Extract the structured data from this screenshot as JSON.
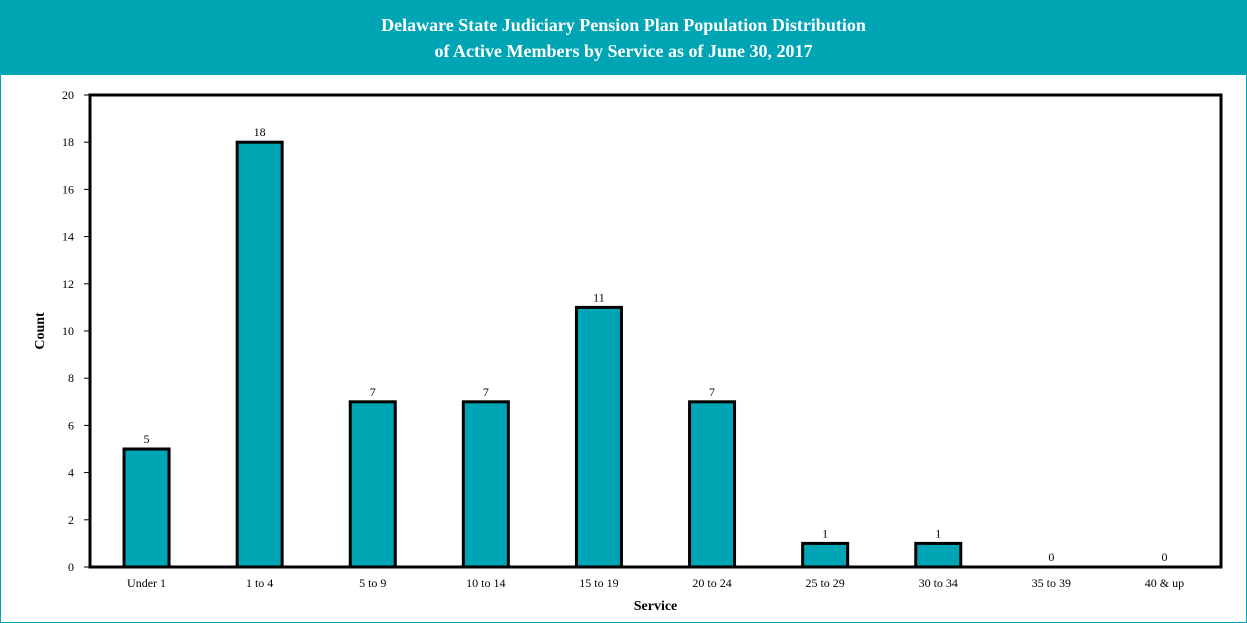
{
  "chart_data": {
    "type": "bar",
    "title": "Delaware State Judiciary Pension Plan Population Distribution",
    "subtitle": "of Active Members by Service as of June 30, 2017",
    "xlabel": "Service",
    "ylabel": "Count",
    "categories": [
      "Under 1",
      "1 to 4",
      "5 to 9",
      "10 to 14",
      "15 to 19",
      "20 to 24",
      "25 to 29",
      "30 to 34",
      "35 to 39",
      "40 & up"
    ],
    "values": [
      5,
      18,
      7,
      7,
      11,
      7,
      1,
      1,
      0,
      0
    ],
    "ylim": [
      0,
      20
    ],
    "yticks": [
      0,
      2,
      4,
      6,
      8,
      10,
      12,
      14,
      16,
      18,
      20
    ],
    "grid": false,
    "legend": "none",
    "bar_color": "#00a5b5",
    "bar_edge_color": "#000000",
    "title_bg_color": "#00a5b5"
  }
}
